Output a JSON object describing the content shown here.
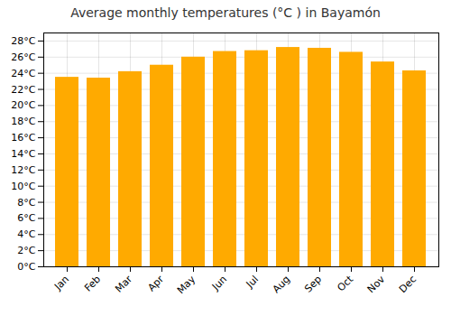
{
  "chart_data": {
    "type": "bar",
    "title": "Average monthly temperatures (°C ) in Bayamón",
    "categories": [
      "Jan",
      "Feb",
      "Mar",
      "Apr",
      "May",
      "Jun",
      "Jul",
      "Aug",
      "Sep",
      "Oct",
      "Nov",
      "Dec"
    ],
    "values": [
      23.5,
      23.4,
      24.2,
      25.0,
      26.0,
      26.7,
      26.8,
      27.2,
      27.1,
      26.6,
      25.4,
      24.3
    ],
    "color": "#FFAA00",
    "ylim": [
      0,
      29
    ],
    "yticks": [
      {
        "value": 0,
        "label": "0°C"
      },
      {
        "value": 2,
        "label": "2°C"
      },
      {
        "value": 4,
        "label": "4°C"
      },
      {
        "value": 6,
        "label": "6°C"
      },
      {
        "value": 8,
        "label": "8°C"
      },
      {
        "value": 10,
        "label": "10°C"
      },
      {
        "value": 12,
        "label": "12°C"
      },
      {
        "value": 14,
        "label": "14°C"
      },
      {
        "value": 16,
        "label": "16°C"
      },
      {
        "value": 18,
        "label": "18°C"
      },
      {
        "value": 20,
        "label": "20°C"
      },
      {
        "value": 22,
        "label": "22°C"
      },
      {
        "value": 24,
        "label": "24°C"
      },
      {
        "value": 26,
        "label": "26°C"
      },
      {
        "value": 28,
        "label": "28°C"
      }
    ],
    "grid": true
  }
}
